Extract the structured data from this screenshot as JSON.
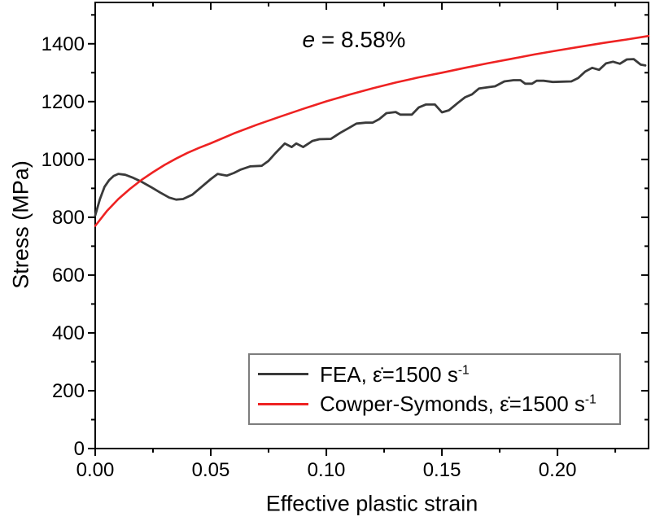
{
  "figure_texts": {
    "annotation_italic": "e",
    "annotation_rest": " = 8.58%",
    "x_title": "Effective plastic strain",
    "y_title": "Stress (MPa)"
  },
  "legend": {
    "entries": [
      {
        "prefix": "FEA, ",
        "rate": "ε̇=1500 s",
        "exponent": "-1",
        "color": "#3a3a3a"
      },
      {
        "prefix": "Cowper-Symonds, ",
        "rate": "ε̇=1500 s",
        "exponent": "-1",
        "color": "#ee2222"
      }
    ]
  },
  "chart_data": {
    "type": "line",
    "title": "",
    "xlabel": "Effective plastic strain",
    "ylabel": "Stress (MPa)",
    "xlim": [
      0,
      0.2394
    ],
    "ylim": [
      0,
      1543
    ],
    "grid": false,
    "legend_position": "inside bottom-right",
    "annotation": "e = 8.58%",
    "frame_color": "#000000",
    "x_ticks": {
      "majors": [
        0,
        0.05,
        0.1,
        0.15,
        0.2
      ],
      "labels": [
        "0.00",
        "0.05",
        "0.10",
        "0.15",
        "0.20"
      ],
      "minors": [
        0.025,
        0.075,
        0.125,
        0.175,
        0.225
      ]
    },
    "y_ticks": {
      "majors": [
        0,
        200,
        400,
        600,
        800,
        1000,
        1200,
        1400
      ],
      "labels": [
        "0",
        "200",
        "400",
        "600",
        "800",
        "1000",
        "1200",
        "1400"
      ],
      "minors": [
        100,
        300,
        500,
        700,
        900,
        1100,
        1300,
        1500
      ]
    },
    "series": [
      {
        "name": "FEA, ε̇=1500 s⁻¹",
        "color": "#3a3a3a",
        "width": 2.8,
        "x": [
          0,
          0.002,
          0.004,
          0.006,
          0.008,
          0.01,
          0.013,
          0.016,
          0.02,
          0.024,
          0.028,
          0.032,
          0.035,
          0.038,
          0.042,
          0.046,
          0.05,
          0.053,
          0.055,
          0.057,
          0.06,
          0.063,
          0.067,
          0.072,
          0.075,
          0.078,
          0.082,
          0.085,
          0.087,
          0.09,
          0.094,
          0.097,
          0.102,
          0.106,
          0.11,
          0.113,
          0.117,
          0.12,
          0.123,
          0.126,
          0.13,
          0.132,
          0.137,
          0.14,
          0.143,
          0.147,
          0.15,
          0.153,
          0.157,
          0.16,
          0.163,
          0.166,
          0.17,
          0.173,
          0.177,
          0.181,
          0.184,
          0.186,
          0.189,
          0.191,
          0.194,
          0.198,
          0.202,
          0.206,
          0.209,
          0.212,
          0.215,
          0.218,
          0.221,
          0.224,
          0.227,
          0.23,
          0.233,
          0.236,
          0.238
        ],
        "y": [
          806,
          862,
          905,
          928,
          943,
          950,
          947,
          938,
          923,
          905,
          886,
          868,
          861,
          863,
          878,
          905,
          932,
          950,
          947,
          944,
          953,
          965,
          976,
          978,
          995,
          1022,
          1055,
          1043,
          1055,
          1043,
          1064,
          1070,
          1071,
          1092,
          1110,
          1124,
          1127,
          1127,
          1140,
          1160,
          1164,
          1155,
          1155,
          1180,
          1190,
          1190,
          1163,
          1170,
          1196,
          1215,
          1225,
          1245,
          1250,
          1253,
          1270,
          1274,
          1274,
          1262,
          1262,
          1272,
          1272,
          1268,
          1269,
          1270,
          1282,
          1304,
          1317,
          1310,
          1332,
          1338,
          1331,
          1346,
          1347,
          1328,
          1325
        ]
      },
      {
        "name": "Cowper-Symonds, ε̇=1500 s⁻¹",
        "color": "#ee2222",
        "width": 2.6,
        "x": [
          0,
          0.005,
          0.01,
          0.015,
          0.02,
          0.025,
          0.03,
          0.035,
          0.04,
          0.045,
          0.05,
          0.06,
          0.07,
          0.08,
          0.09,
          0.1,
          0.11,
          0.12,
          0.13,
          0.14,
          0.15,
          0.16,
          0.17,
          0.18,
          0.19,
          0.2,
          0.21,
          0.22,
          0.23,
          0.2394
        ],
        "y": [
          770,
          821,
          863,
          898,
          929,
          956,
          981,
          1003,
          1023,
          1040,
          1056,
          1090,
          1120,
          1148,
          1175,
          1201,
          1224,
          1246,
          1266,
          1284,
          1300,
          1317,
          1333,
          1348,
          1363,
          1377,
          1390,
          1403,
          1415,
          1427
        ]
      }
    ]
  }
}
